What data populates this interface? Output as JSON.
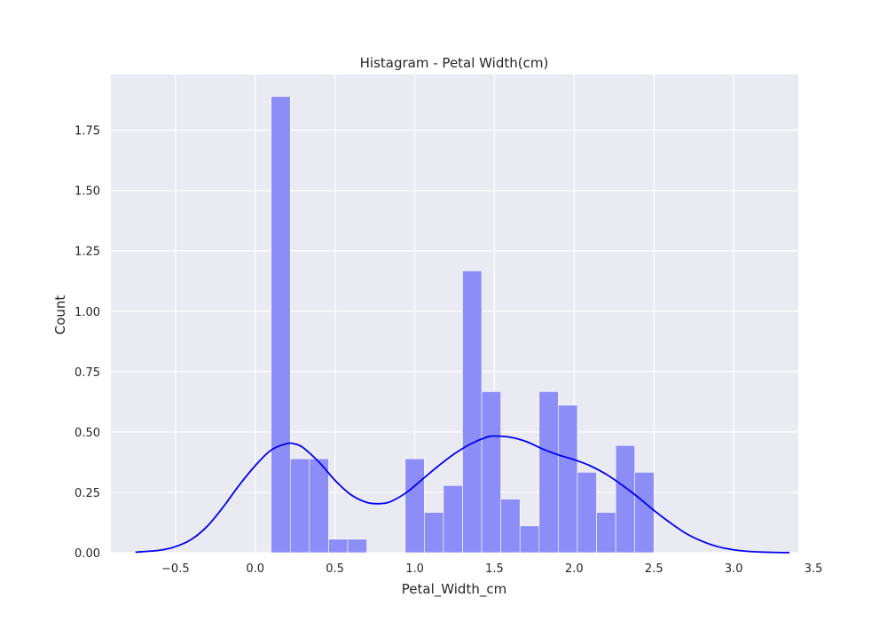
{
  "chart_data": {
    "type": "bar",
    "title": "Histagram - Petal Width(cm)",
    "xlabel": "Petal_Width_cm",
    "ylabel": "Count",
    "xlim": [
      -0.905,
      3.405
    ],
    "ylim": [
      0,
      1.98
    ],
    "xticks": [
      -0.5,
      0.0,
      0.5,
      1.0,
      1.5,
      2.0,
      2.5,
      3.0,
      3.5
    ],
    "xtick_labels": [
      "−0.5",
      "0.0",
      "0.5",
      "1.0",
      "1.5",
      "2.0",
      "2.5",
      "3.0",
      "3.5"
    ],
    "yticks": [
      0.0,
      0.25,
      0.5,
      0.75,
      1.0,
      1.25,
      1.5,
      1.75
    ],
    "ytick_labels": [
      "0.00",
      "0.25",
      "0.50",
      "0.75",
      "1.00",
      "1.25",
      "1.50",
      "1.75"
    ],
    "grid": true,
    "bins": [
      {
        "x0": 0.1,
        "x1": 0.22,
        "value": 1.889
      },
      {
        "x0": 0.22,
        "x1": 0.34,
        "value": 0.389
      },
      {
        "x0": 0.34,
        "x1": 0.46,
        "value": 0.389
      },
      {
        "x0": 0.46,
        "x1": 0.58,
        "value": 0.056
      },
      {
        "x0": 0.58,
        "x1": 0.7,
        "value": 0.056
      },
      {
        "x0": 0.7,
        "x1": 0.82,
        "value": 0.0
      },
      {
        "x0": 0.82,
        "x1": 0.94,
        "value": 0.0
      },
      {
        "x0": 0.94,
        "x1": 1.06,
        "value": 0.389
      },
      {
        "x0": 1.06,
        "x1": 1.18,
        "value": 0.167
      },
      {
        "x0": 1.18,
        "x1": 1.3,
        "value": 0.278
      },
      {
        "x0": 1.3,
        "x1": 1.42,
        "value": 1.167
      },
      {
        "x0": 1.42,
        "x1": 1.54,
        "value": 0.667
      },
      {
        "x0": 1.54,
        "x1": 1.66,
        "value": 0.222
      },
      {
        "x0": 1.66,
        "x1": 1.78,
        "value": 0.111
      },
      {
        "x0": 1.78,
        "x1": 1.9,
        "value": 0.667
      },
      {
        "x0": 1.9,
        "x1": 2.02,
        "value": 0.611
      },
      {
        "x0": 2.02,
        "x1": 2.14,
        "value": 0.333
      },
      {
        "x0": 2.14,
        "x1": 2.26,
        "value": 0.167
      },
      {
        "x0": 2.26,
        "x1": 2.38,
        "value": 0.444
      },
      {
        "x0": 2.38,
        "x1": 2.5,
        "value": 0.333
      }
    ],
    "kde": {
      "x": [
        -0.75,
        -0.6,
        -0.5,
        -0.4,
        -0.3,
        -0.2,
        -0.1,
        0.0,
        0.1,
        0.2,
        0.25,
        0.3,
        0.4,
        0.5,
        0.6,
        0.7,
        0.78,
        0.85,
        0.95,
        1.05,
        1.15,
        1.25,
        1.35,
        1.45,
        1.5,
        1.6,
        1.7,
        1.8,
        1.9,
        2.0,
        2.1,
        2.2,
        2.3,
        2.4,
        2.5,
        2.6,
        2.7,
        2.8,
        2.9,
        3.0,
        3.1,
        3.2,
        3.35
      ],
      "y": [
        0.002,
        0.01,
        0.025,
        0.055,
        0.11,
        0.19,
        0.28,
        0.36,
        0.425,
        0.452,
        0.45,
        0.435,
        0.375,
        0.3,
        0.24,
        0.208,
        0.203,
        0.212,
        0.25,
        0.305,
        0.36,
        0.41,
        0.45,
        0.478,
        0.483,
        0.478,
        0.46,
        0.43,
        0.405,
        0.385,
        0.36,
        0.325,
        0.28,
        0.23,
        0.175,
        0.125,
        0.08,
        0.048,
        0.025,
        0.012,
        0.005,
        0.002,
        0.0
      ]
    },
    "colors": {
      "bar_fill": "#8d8df7",
      "bar_edge": "#ffffff",
      "kde_line": "#0000ee",
      "plot_background": "#eaeaf2",
      "grid": "#ffffff"
    }
  }
}
